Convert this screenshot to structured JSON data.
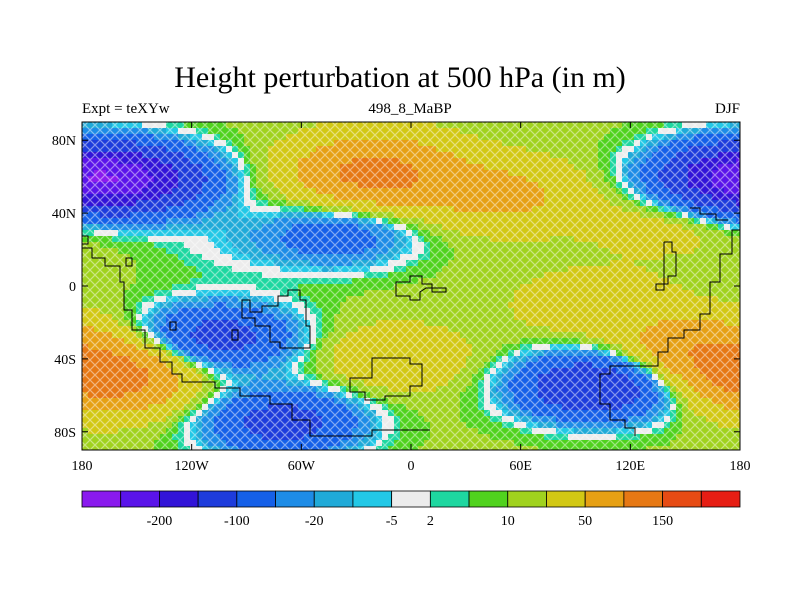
{
  "header": {
    "title": "Height perturbation at 500 hPa (in m)",
    "left_label": "Expt = teXYw",
    "center_label": "498_8_MaBP",
    "right_label": "DJF"
  },
  "chart_data": {
    "type": "heatmap",
    "title": "Height perturbation at 500 hPa (in m)",
    "x_ticks": [
      "180",
      "120W",
      "60W",
      "0",
      "60E",
      "120E",
      "180"
    ],
    "x_tick_values": [
      -180,
      -120,
      -60,
      0,
      60,
      120,
      180
    ],
    "y_ticks": [
      "80N",
      "40N",
      "0",
      "40S",
      "80S"
    ],
    "y_tick_values": [
      80,
      40,
      0,
      -40,
      -80
    ],
    "xlim": [
      -180,
      180
    ],
    "ylim": [
      -90,
      90
    ],
    "colorbar": {
      "labels": [
        "-200",
        "-100",
        "-20",
        "-5",
        "2",
        "10",
        "50",
        "150"
      ],
      "levels": [
        -200,
        -150,
        -100,
        -50,
        -20,
        -10,
        -5,
        -2,
        2,
        5,
        10,
        20,
        50,
        100,
        150,
        200
      ],
      "label_after_box": [
        1,
        3,
        5,
        7,
        8,
        10,
        12,
        14
      ],
      "colors": [
        "#8a1aee",
        "#5a14ea",
        "#3214d8",
        "#1e3cdc",
        "#1560e8",
        "#1e8ce6",
        "#20aad8",
        "#23c8e6",
        "#ececec",
        "#1ed7a0",
        "#50d21e",
        "#a0d21e",
        "#d2c814",
        "#e6a014",
        "#e67814",
        "#e64b14",
        "#e61e14"
      ]
    },
    "field_anomalies_m": [
      {
        "lon": -150,
        "lat": 58,
        "value": -120
      },
      {
        "lon": -100,
        "lat": 22,
        "value": -10
      },
      {
        "lon": -40,
        "lat": 28,
        "value": -45
      },
      {
        "lon": -20,
        "lat": 62,
        "value": 110
      },
      {
        "lon": 50,
        "lat": 50,
        "value": 50
      },
      {
        "lon": 175,
        "lat": 60,
        "value": -140
      },
      {
        "lon": 140,
        "lat": 35,
        "value": 20
      },
      {
        "lon": -165,
        "lat": -50,
        "value": 120
      },
      {
        "lon": -105,
        "lat": -28,
        "value": -80
      },
      {
        "lon": -70,
        "lat": -75,
        "value": -80
      },
      {
        "lon": 100,
        "lat": -55,
        "value": -110
      },
      {
        "lon": 155,
        "lat": -35,
        "value": 70
      },
      {
        "lon": 100,
        "lat": -10,
        "value": 25
      },
      {
        "lon": -10,
        "lat": -40,
        "value": 30
      }
    ]
  }
}
